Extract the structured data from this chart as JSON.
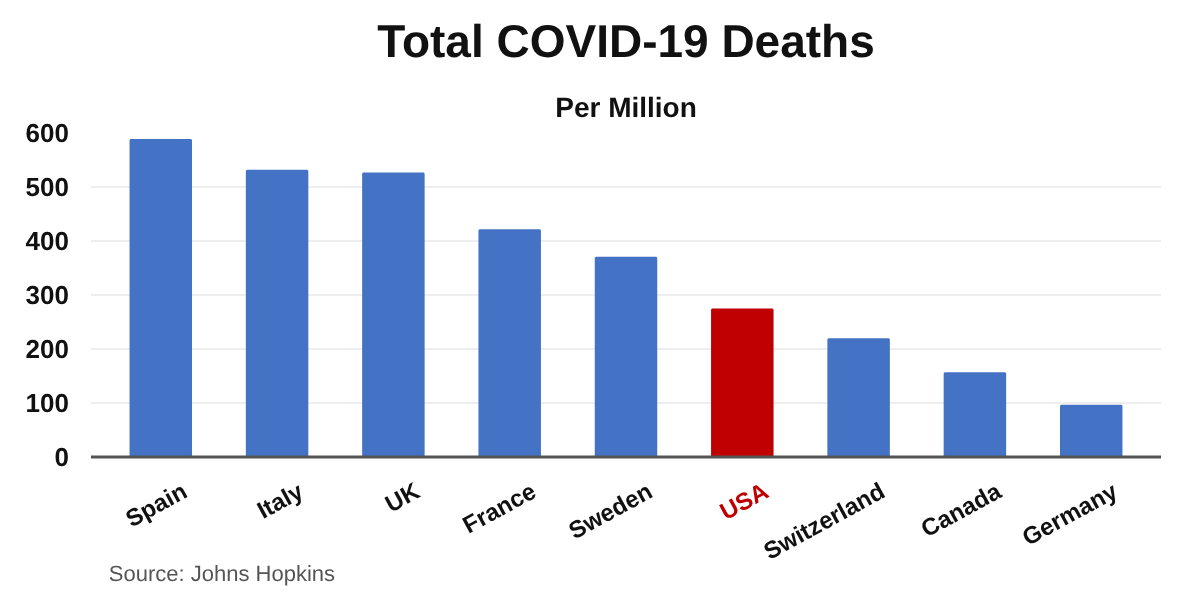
{
  "chart_data": {
    "type": "bar",
    "title": "Total COVID-19 Deaths",
    "subtitle": "Per Million",
    "categories": [
      "Spain",
      "Italy",
      "UK",
      "France",
      "Sweden",
      "USA",
      "Switzerland",
      "Canada",
      "Germany"
    ],
    "values": [
      587,
      530,
      525,
      420,
      369,
      273,
      218,
      155,
      95
    ],
    "colors": [
      "#4472c4",
      "#4472c4",
      "#4472c4",
      "#4472c4",
      "#4472c4",
      "#c00000",
      "#4472c4",
      "#4472c4",
      "#4472c4"
    ],
    "ylim": [
      0,
      600
    ],
    "yticks": [
      0,
      100,
      200,
      300,
      400,
      500,
      600
    ],
    "grid": "y",
    "annotations": [
      "Source: Johns Hopkins"
    ]
  }
}
